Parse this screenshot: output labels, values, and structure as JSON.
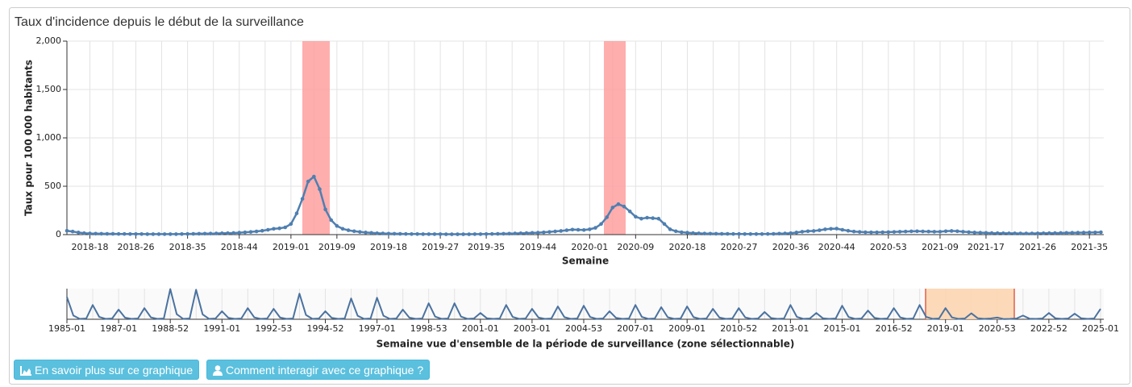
{
  "chart_data": [
    {
      "type": "line",
      "title": "Taux d'incidence depuis le début de la surveillance",
      "y_label": "Taux pour 100 000 habitants",
      "x_label": "Semaine",
      "color": "#4f7fb0",
      "grid": true,
      "markers": true,
      "ylim": [
        0,
        2000
      ],
      "yticks": [
        0,
        500,
        {
          "value": 1000,
          "label": "1,000"
        },
        {
          "value": 1500,
          "label": "1,500"
        },
        {
          "value": 2000,
          "label": "2,000"
        }
      ],
      "categories": [
        null,
        null,
        null,
        null,
        "2018-18",
        null,
        null,
        null,
        null,
        null,
        null,
        null,
        "2018-26",
        null,
        null,
        null,
        null,
        null,
        null,
        null,
        null,
        "2018-35",
        null,
        null,
        null,
        null,
        null,
        null,
        null,
        null,
        "2018-44",
        null,
        null,
        null,
        null,
        null,
        null,
        null,
        null,
        "2019-01",
        null,
        null,
        null,
        null,
        null,
        null,
        null,
        "2019-09",
        null,
        null,
        null,
        null,
        null,
        null,
        null,
        null,
        "2019-18",
        null,
        null,
        null,
        null,
        null,
        null,
        null,
        null,
        "2019-27",
        null,
        null,
        null,
        null,
        null,
        null,
        null,
        "2019-35",
        null,
        null,
        null,
        null,
        null,
        null,
        null,
        null,
        "2019-44",
        null,
        null,
        null,
        null,
        null,
        null,
        null,
        null,
        "2020-01",
        null,
        null,
        null,
        null,
        null,
        null,
        null,
        "2020-09",
        null,
        null,
        null,
        null,
        null,
        null,
        null,
        null,
        "2020-18",
        null,
        null,
        null,
        null,
        null,
        null,
        null,
        null,
        "2020-27",
        null,
        null,
        null,
        null,
        null,
        null,
        null,
        null,
        "2020-36",
        null,
        null,
        null,
        null,
        null,
        null,
        null,
        "2020-44",
        null,
        null,
        null,
        null,
        null,
        null,
        null,
        null,
        "2020-53",
        null,
        null,
        null,
        null,
        null,
        null,
        null,
        null,
        "2021-09",
        null,
        null,
        null,
        null,
        null,
        null,
        null,
        "2021-17",
        null,
        null,
        null,
        null,
        null,
        null,
        null,
        null,
        "2021-26",
        null,
        null,
        null,
        null,
        null,
        null,
        null,
        null,
        "2021-35",
        null,
        null
      ],
      "values": [
        40,
        32,
        22,
        15,
        12,
        10,
        9,
        8,
        8,
        7,
        7,
        6,
        6,
        6,
        5,
        5,
        5,
        5,
        5,
        5,
        6,
        7,
        8,
        9,
        10,
        11,
        12,
        14,
        15,
        17,
        20,
        24,
        28,
        33,
        40,
        50,
        60,
        65,
        75,
        110,
        220,
        370,
        550,
        600,
        470,
        260,
        150,
        90,
        60,
        45,
        35,
        28,
        22,
        18,
        14,
        12,
        10,
        9,
        8,
        7,
        6,
        6,
        5,
        5,
        5,
        5,
        4,
        4,
        4,
        4,
        4,
        5,
        5,
        6,
        7,
        8,
        9,
        10,
        12,
        14,
        16,
        18,
        20,
        24,
        28,
        33,
        38,
        45,
        52,
        50,
        48,
        55,
        70,
        110,
        180,
        280,
        315,
        290,
        240,
        185,
        165,
        175,
        170,
        165,
        110,
        55,
        35,
        25,
        20,
        16,
        13,
        11,
        10,
        9,
        8,
        8,
        7,
        7,
        6,
        6,
        6,
        6,
        7,
        8,
        10,
        12,
        15,
        22,
        30,
        35,
        38,
        45,
        55,
        60,
        62,
        50,
        40,
        32,
        28,
        25,
        24,
        24,
        25,
        26,
        28,
        30,
        32,
        34,
        35,
        33,
        32,
        30,
        30,
        35,
        38,
        35,
        30,
        26,
        22,
        20,
        18,
        16,
        15,
        14,
        13,
        13,
        12,
        12,
        12,
        13,
        14,
        15,
        16,
        17,
        18,
        19,
        20,
        21,
        22,
        23,
        25
      ]
    },
    {
      "type": "line",
      "x_label": "Semaine vue d'ensemble de la période de surveillance (zone sélectionnable)",
      "color": "#4a72a0",
      "ylim": [
        0,
        1650
      ],
      "categories": [
        "1985-01",
        null,
        null,
        null,
        null,
        null,
        null,
        null,
        "1987-01",
        null,
        null,
        null,
        null,
        null,
        null,
        null,
        "1988-52",
        null,
        null,
        null,
        null,
        null,
        null,
        null,
        "1991-01",
        null,
        null,
        null,
        null,
        null,
        null,
        null,
        "1992-53",
        null,
        null,
        null,
        null,
        null,
        null,
        null,
        "1994-52",
        null,
        null,
        null,
        null,
        null,
        null,
        null,
        "1997-01",
        null,
        null,
        null,
        null,
        null,
        null,
        null,
        "1998-53",
        null,
        null,
        null,
        null,
        null,
        null,
        null,
        "2001-01",
        null,
        null,
        null,
        null,
        null,
        null,
        null,
        "2003-01",
        null,
        null,
        null,
        null,
        null,
        null,
        null,
        "2004-53",
        null,
        null,
        null,
        null,
        null,
        null,
        null,
        "2007-01",
        null,
        null,
        null,
        null,
        null,
        null,
        null,
        "2009-01",
        null,
        null,
        null,
        null,
        null,
        null,
        null,
        "2010-52",
        null,
        null,
        null,
        null,
        null,
        null,
        null,
        "2013-01",
        null,
        null,
        null,
        null,
        null,
        null,
        null,
        "2015-01",
        null,
        null,
        null,
        null,
        null,
        null,
        null,
        "2016-52",
        null,
        null,
        null,
        null,
        null,
        null,
        null,
        "2019-01",
        null,
        null,
        null,
        null,
        null,
        null,
        null,
        "2020-53",
        null,
        null,
        null,
        null,
        null,
        null,
        null,
        "2022-52",
        null,
        null,
        null,
        null,
        null,
        null,
        null,
        "2025-01"
      ],
      "values": [
        1200,
        200,
        20,
        45,
        770,
        128,
        20,
        45,
        520,
        87,
        20,
        45,
        600,
        100,
        20,
        45,
        1630,
        272,
        20,
        45,
        1590,
        265,
        20,
        45,
        430,
        72,
        20,
        45,
        600,
        100,
        20,
        45,
        560,
        93,
        20,
        45,
        1380,
        230,
        20,
        45,
        430,
        72,
        20,
        45,
        1120,
        187,
        20,
        45,
        1160,
        193,
        20,
        45,
        520,
        87,
        20,
        45,
        860,
        143,
        20,
        45,
        860,
        143,
        20,
        45,
        340,
        57,
        20,
        45,
        770,
        128,
        20,
        45,
        560,
        93,
        20,
        45,
        690,
        115,
        20,
        45,
        730,
        122,
        20,
        45,
        430,
        72,
        20,
        45,
        770,
        128,
        20,
        45,
        650,
        108,
        20,
        45,
        690,
        115,
        20,
        45,
        560,
        93,
        20,
        45,
        600,
        100,
        20,
        45,
        390,
        65,
        20,
        45,
        770,
        128,
        20,
        45,
        340,
        57,
        20,
        45,
        730,
        122,
        20,
        45,
        470,
        78,
        20,
        45,
        600,
        100,
        20,
        45,
        770,
        128,
        20,
        45,
        600,
        100,
        20,
        45,
        320,
        53,
        20,
        45,
        90,
        15,
        20,
        45,
        200,
        33,
        20,
        45,
        340,
        57,
        20,
        45,
        300,
        50,
        20,
        45,
        560
      ]
    }
  ],
  "buttons": [
    "En savoir plus sur ce graphique",
    "Comment interagir avec ce graphique ?"
  ]
}
